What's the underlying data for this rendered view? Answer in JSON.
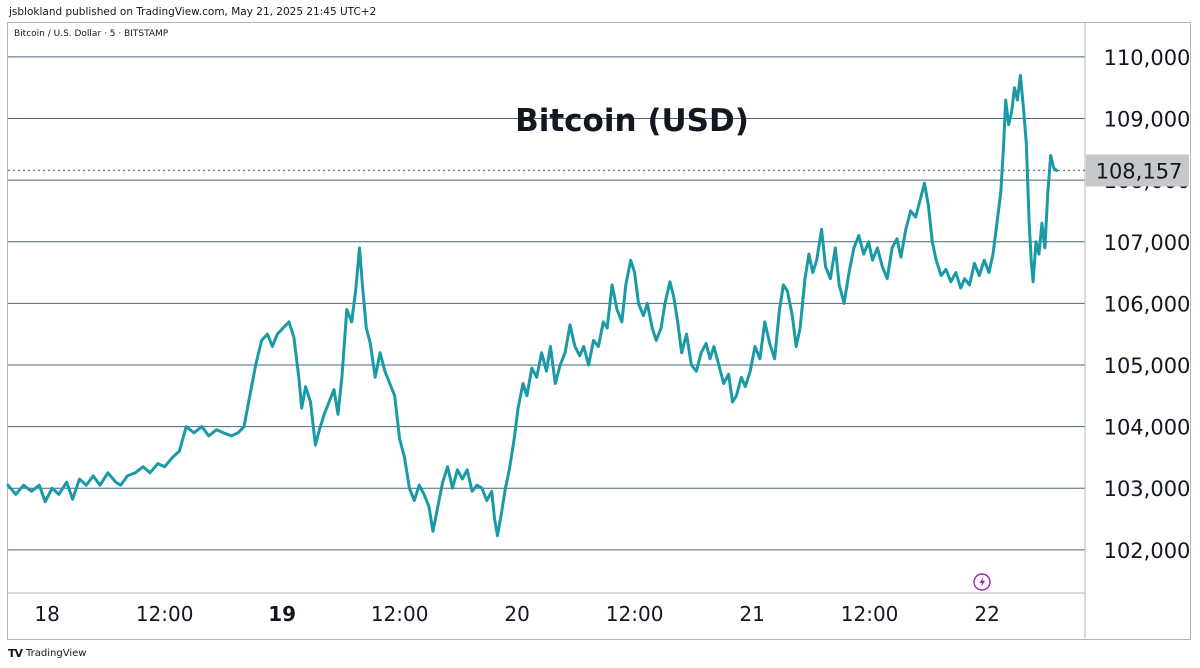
{
  "header": {
    "published_text": "jsblokland published on TradingView.com, May 21, 2025 21:45 UTC+2"
  },
  "symbol": {
    "description": "Bitcoin / U.S. Dollar · 5 · BITSTAMP"
  },
  "footer": {
    "logo_text": "TV",
    "brand": "TradingView"
  },
  "colors": {
    "line": "#1a9aa6",
    "grid": "#4a6482",
    "price_label_bg": "#c6c7cb",
    "last_price_dotted": "#8c6e8f",
    "replay_icon": "#9c27b0"
  },
  "chart_data": {
    "type": "line",
    "title": "Bitcoin (USD)",
    "y_axis": {
      "min": 101300,
      "max": 110550,
      "ticks": [
        102000,
        103000,
        104000,
        105000,
        106000,
        107000,
        108000,
        109000,
        110000
      ],
      "tick_labels": [
        "102,000",
        "103,000",
        "104,000",
        "105,000",
        "106,000",
        "107,000",
        "108,000",
        "109,000",
        "110,000"
      ]
    },
    "x_axis": {
      "unit": "hours from May 17 22:00",
      "min": 0,
      "max": 110,
      "ticks": [
        {
          "t": 4,
          "label": "18",
          "bold": false
        },
        {
          "t": 16,
          "label": "12:00",
          "bold": false
        },
        {
          "t": 28,
          "label": "19",
          "bold": true
        },
        {
          "t": 40,
          "label": "12:00",
          "bold": false
        },
        {
          "t": 52,
          "label": "20",
          "bold": false
        },
        {
          "t": 64,
          "label": "12:00",
          "bold": false
        },
        {
          "t": 76,
          "label": "21",
          "bold": false
        },
        {
          "t": 88,
          "label": "12:00",
          "bold": false
        },
        {
          "t": 100,
          "label": "22",
          "bold": false
        }
      ]
    },
    "last_price": {
      "value": 108157,
      "label": "108,157"
    },
    "grid": "horizontal",
    "series": [
      {
        "points": [
          [
            0,
            103050
          ],
          [
            0.8,
            102900
          ],
          [
            1.6,
            103050
          ],
          [
            2.4,
            102950
          ],
          [
            3.2,
            103050
          ],
          [
            3.8,
            102780
          ],
          [
            4.5,
            103000
          ],
          [
            5.2,
            102900
          ],
          [
            6,
            103100
          ],
          [
            6.6,
            102820
          ],
          [
            7.3,
            103150
          ],
          [
            8,
            103050
          ],
          [
            8.7,
            103200
          ],
          [
            9.4,
            103050
          ],
          [
            10.2,
            103250
          ],
          [
            11,
            103100
          ],
          [
            11.5,
            103050
          ],
          [
            12.2,
            103200
          ],
          [
            13,
            103250
          ],
          [
            13.8,
            103350
          ],
          [
            14.5,
            103250
          ],
          [
            15.3,
            103400
          ],
          [
            16,
            103350
          ],
          [
            16.8,
            103500
          ],
          [
            17.5,
            103600
          ],
          [
            18.2,
            104000
          ],
          [
            19,
            103900
          ],
          [
            19.8,
            104000
          ],
          [
            20.5,
            103850
          ],
          [
            21.3,
            103950
          ],
          [
            22,
            103900
          ],
          [
            22.8,
            103850
          ],
          [
            23.5,
            103900
          ],
          [
            24.1,
            104000
          ],
          [
            24.7,
            104500
          ],
          [
            25.3,
            105000
          ],
          [
            25.9,
            105400
          ],
          [
            26.5,
            105500
          ],
          [
            27,
            105300
          ],
          [
            27.5,
            105500
          ],
          [
            28.1,
            105600
          ],
          [
            28.7,
            105700
          ],
          [
            29.2,
            105450
          ],
          [
            29.7,
            104800
          ],
          [
            30,
            104300
          ],
          [
            30.4,
            104650
          ],
          [
            30.9,
            104400
          ],
          [
            31.4,
            103700
          ],
          [
            31.8,
            103950
          ],
          [
            32.3,
            104200
          ],
          [
            32.8,
            104400
          ],
          [
            33.3,
            104600
          ],
          [
            33.7,
            104200
          ],
          [
            34.1,
            104800
          ],
          [
            34.6,
            105900
          ],
          [
            35.1,
            105700
          ],
          [
            35.5,
            106200
          ],
          [
            35.9,
            106900
          ],
          [
            36.2,
            106300
          ],
          [
            36.6,
            105600
          ],
          [
            37,
            105350
          ],
          [
            37.5,
            104800
          ],
          [
            38,
            105200
          ],
          [
            38.5,
            104900
          ],
          [
            39,
            104700
          ],
          [
            39.5,
            104500
          ],
          [
            40,
            103800
          ],
          [
            40.5,
            103500
          ],
          [
            41,
            103000
          ],
          [
            41.5,
            102800
          ],
          [
            42,
            103050
          ],
          [
            42.5,
            102900
          ],
          [
            43,
            102700
          ],
          [
            43.4,
            102300
          ],
          [
            43.9,
            102700
          ],
          [
            44.4,
            103100
          ],
          [
            44.9,
            103350
          ],
          [
            45.4,
            103000
          ],
          [
            45.9,
            103300
          ],
          [
            46.4,
            103150
          ],
          [
            46.9,
            103300
          ],
          [
            47.4,
            102950
          ],
          [
            47.9,
            103050
          ],
          [
            48.4,
            103000
          ],
          [
            48.9,
            102800
          ],
          [
            49.4,
            102950
          ],
          [
            49.7,
            102500
          ],
          [
            50,
            102230
          ],
          [
            50.4,
            102600
          ],
          [
            50.8,
            103000
          ],
          [
            51.2,
            103300
          ],
          [
            51.7,
            103800
          ],
          [
            52.1,
            104300
          ],
          [
            52.6,
            104700
          ],
          [
            53,
            104500
          ],
          [
            53.5,
            104950
          ],
          [
            54,
            104800
          ],
          [
            54.5,
            105200
          ],
          [
            55,
            104900
          ],
          [
            55.4,
            105300
          ],
          [
            55.9,
            104700
          ],
          [
            56.4,
            105000
          ],
          [
            56.9,
            105200
          ],
          [
            57.4,
            105650
          ],
          [
            57.9,
            105300
          ],
          [
            58.4,
            105150
          ],
          [
            58.8,
            105300
          ],
          [
            59.3,
            105000
          ],
          [
            59.8,
            105400
          ],
          [
            60.3,
            105300
          ],
          [
            60.8,
            105700
          ],
          [
            61.2,
            105600
          ],
          [
            61.7,
            106300
          ],
          [
            62.2,
            105900
          ],
          [
            62.7,
            105700
          ],
          [
            63.1,
            106300
          ],
          [
            63.6,
            106700
          ],
          [
            64,
            106500
          ],
          [
            64.4,
            106000
          ],
          [
            64.9,
            105800
          ],
          [
            65.3,
            106000
          ],
          [
            65.8,
            105600
          ],
          [
            66.2,
            105400
          ],
          [
            66.7,
            105600
          ],
          [
            67.1,
            106000
          ],
          [
            67.6,
            106350
          ],
          [
            68,
            106100
          ],
          [
            68.4,
            105700
          ],
          [
            68.8,
            105200
          ],
          [
            69.3,
            105500
          ],
          [
            69.8,
            105000
          ],
          [
            70.3,
            104900
          ],
          [
            70.8,
            105200
          ],
          [
            71.3,
            105350
          ],
          [
            71.7,
            105100
          ],
          [
            72.1,
            105300
          ],
          [
            72.6,
            105000
          ],
          [
            73.1,
            104700
          ],
          [
            73.6,
            104850
          ],
          [
            74,
            104400
          ],
          [
            74.4,
            104500
          ],
          [
            74.9,
            104800
          ],
          [
            75.3,
            104650
          ],
          [
            75.8,
            104900
          ],
          [
            76.3,
            105300
          ],
          [
            76.8,
            105100
          ],
          [
            77.3,
            105700
          ],
          [
            77.8,
            105350
          ],
          [
            78.3,
            105100
          ],
          [
            78.8,
            105900
          ],
          [
            79.2,
            106300
          ],
          [
            79.6,
            106200
          ],
          [
            80.1,
            105800
          ],
          [
            80.5,
            105300
          ],
          [
            80.9,
            105600
          ],
          [
            81.4,
            106400
          ],
          [
            81.8,
            106800
          ],
          [
            82.2,
            106500
          ],
          [
            82.6,
            106700
          ],
          [
            83.1,
            107200
          ],
          [
            83.5,
            106600
          ],
          [
            84,
            106400
          ],
          [
            84.5,
            106900
          ],
          [
            84.9,
            106300
          ],
          [
            85.4,
            106000
          ],
          [
            85.9,
            106500
          ],
          [
            86.4,
            106900
          ],
          [
            86.9,
            107100
          ],
          [
            87.4,
            106800
          ],
          [
            87.9,
            107000
          ],
          [
            88.3,
            106700
          ],
          [
            88.8,
            106900
          ],
          [
            89.3,
            106600
          ],
          [
            89.8,
            106400
          ],
          [
            90.3,
            106900
          ],
          [
            90.8,
            107050
          ],
          [
            91.2,
            106750
          ],
          [
            91.7,
            107200
          ],
          [
            92.2,
            107500
          ],
          [
            92.7,
            107400
          ],
          [
            93.2,
            107700
          ],
          [
            93.6,
            107950
          ],
          [
            94,
            107600
          ],
          [
            94.4,
            107000
          ],
          [
            94.8,
            106700
          ],
          [
            95.3,
            106450
          ],
          [
            95.8,
            106550
          ],
          [
            96.3,
            106350
          ],
          [
            96.8,
            106500
          ],
          [
            97.3,
            106250
          ],
          [
            97.7,
            106400
          ],
          [
            98.2,
            106300
          ],
          [
            98.7,
            106650
          ],
          [
            99.2,
            106450
          ],
          [
            99.7,
            106700
          ],
          [
            100.2,
            106500
          ],
          [
            100.6,
            106800
          ],
          [
            101,
            107300
          ],
          [
            101.4,
            107800
          ],
          [
            101.7,
            108600
          ],
          [
            101.9,
            109300
          ],
          [
            102.2,
            108900
          ],
          [
            102.5,
            109100
          ],
          [
            102.8,
            109500
          ],
          [
            103.1,
            109300
          ],
          [
            103.4,
            109700
          ],
          [
            103.7,
            109200
          ],
          [
            104,
            108600
          ],
          [
            104.3,
            107300
          ],
          [
            104.5,
            106700
          ],
          [
            104.7,
            106350
          ],
          [
            105,
            107000
          ],
          [
            105.3,
            106800
          ],
          [
            105.6,
            107300
          ],
          [
            105.9,
            106900
          ],
          [
            106.2,
            107800
          ],
          [
            106.5,
            108400
          ],
          [
            106.8,
            108200
          ],
          [
            107.1,
            108157
          ]
        ]
      }
    ]
  }
}
